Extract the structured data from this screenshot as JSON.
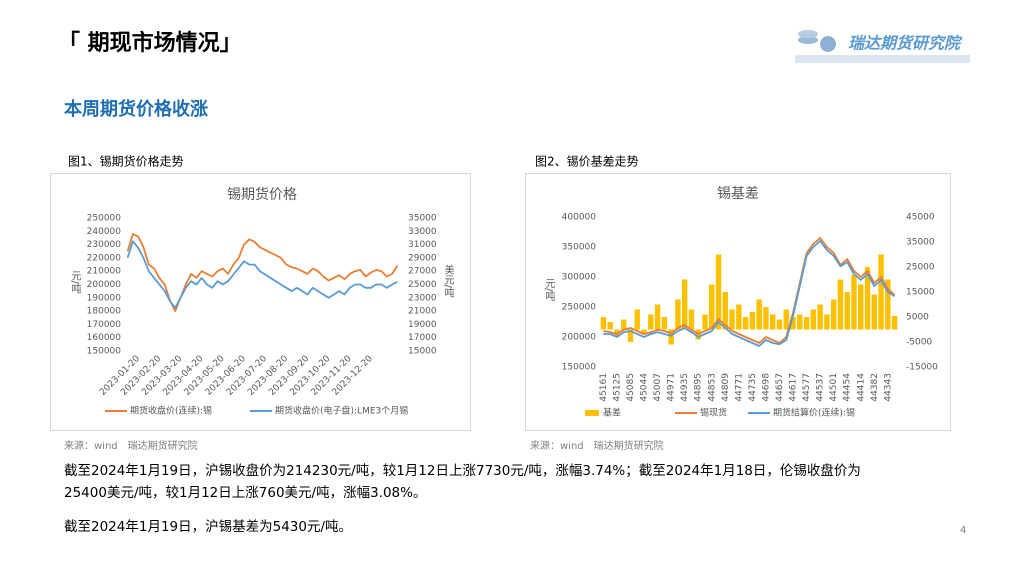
{
  "header": {
    "title": "「 期现市场情况」",
    "logo": "瑞达期货研究院"
  },
  "section_title": "本周期货价格收涨",
  "figures": [
    {
      "caption": "图1、锡期货价格走势",
      "source": "来源：wind　瑞达期货研究院"
    },
    {
      "caption": "图2、锡价基差走势",
      "source": "来源：wind　瑞达期货研究院"
    }
  ],
  "chart_data": [
    {
      "type": "line",
      "title": "锡期货价格",
      "ylabel": "元/吨",
      "y2label": "美元/吨",
      "categories": [
        null,
        null,
        "2023-01-20",
        null,
        null,
        null,
        "2023-02-20",
        null,
        null,
        null,
        "2023-03-20",
        null,
        null,
        null,
        "2023-04-20",
        null,
        null,
        null,
        "2023-05-20",
        null,
        null,
        null,
        "2023-06-20",
        null,
        null,
        null,
        "2023-07-20",
        null,
        null,
        null,
        "2023-08-20",
        null,
        null,
        null,
        "2023-09-20",
        null,
        null,
        null,
        "2023-10-20",
        null,
        null,
        null,
        "2023-11-20",
        null,
        null,
        null,
        "2023-12-20",
        null,
        null,
        null,
        null,
        null
      ],
      "ylim": [
        150000,
        250000
      ],
      "yticks": [
        150000,
        160000,
        170000,
        180000,
        190000,
        200000,
        210000,
        220000,
        230000,
        240000,
        250000
      ],
      "y2lim": [
        15000,
        35000
      ],
      "y2ticks": [
        15000,
        17000,
        19000,
        21000,
        23000,
        25000,
        27000,
        29000,
        31000,
        33000,
        35000
      ],
      "grid": false,
      "series": [
        {
          "name": "期货收盘价(连续):锡",
          "color": "#ED7D31",
          "type": "line",
          "values": [
            225000,
            238000,
            236000,
            228000,
            215000,
            212000,
            205000,
            200000,
            188000,
            180000,
            190000,
            200000,
            208000,
            205000,
            210000,
            208000,
            206000,
            210000,
            212000,
            208000,
            215000,
            220000,
            230000,
            234000,
            232000,
            228000,
            226000,
            224000,
            222000,
            220000,
            215000,
            213000,
            212000,
            210000,
            208000,
            212000,
            210000,
            206000,
            203000,
            205000,
            207000,
            204000,
            208000,
            210000,
            211000,
            206000,
            209000,
            211000,
            210000,
            206000,
            208000,
            214230
          ]
        },
        {
          "name": "期货收盘价(电子盘):LME3个月锡",
          "color": "#5B9BD5",
          "type": "line",
          "axis": "y2",
          "values": [
            29000,
            31500,
            30500,
            29000,
            27000,
            26000,
            25000,
            24000,
            22500,
            21500,
            23000,
            24500,
            25500,
            25000,
            26000,
            25000,
            24500,
            25500,
            25000,
            25500,
            26500,
            27500,
            28500,
            28000,
            28000,
            27000,
            26500,
            26000,
            25500,
            25000,
            24500,
            24000,
            24500,
            24000,
            23500,
            24500,
            24000,
            23500,
            23000,
            23500,
            24000,
            23500,
            24500,
            25000,
            25000,
            24500,
            24500,
            25000,
            25000,
            24500,
            25000,
            25400
          ]
        }
      ]
    },
    {
      "type": "combo",
      "title": "锡基差",
      "ylabel": "元/吨",
      "categories": [
        "45161",
        null,
        "45125",
        null,
        "45085",
        null,
        "45044",
        null,
        "45007",
        null,
        "44971",
        null,
        "44935",
        null,
        "44895",
        null,
        "44853",
        null,
        "44809",
        null,
        "44771",
        null,
        "44735",
        null,
        "44698",
        null,
        "44657",
        null,
        "44617",
        null,
        "44577",
        null,
        "44537",
        null,
        "44501",
        null,
        "44454",
        null,
        "44414",
        null,
        "44382",
        null,
        "44343",
        null
      ],
      "ylim": [
        150000,
        400000
      ],
      "yticks": [
        150000,
        200000,
        250000,
        300000,
        350000,
        400000
      ],
      "y2lim": [
        -15000,
        45000
      ],
      "y2ticks": [
        -15000,
        -5000,
        5000,
        15000,
        25000,
        35000,
        45000
      ],
      "grid": false,
      "series": [
        {
          "name": "基差",
          "color": "#FFC000",
          "type": "bar",
          "axis": "y2",
          "values": [
            5000,
            3000,
            -3000,
            4000,
            -5000,
            8000,
            -2000,
            6000,
            10000,
            5000,
            -6000,
            12000,
            20000,
            8000,
            -4000,
            6000,
            18000,
            30000,
            15000,
            8000,
            10000,
            5000,
            7000,
            12000,
            9000,
            6000,
            4000,
            8000,
            5000,
            6000,
            5000,
            8000,
            10000,
            6000,
            12000,
            20000,
            15000,
            22000,
            18000,
            25000,
            14000,
            30000,
            20000,
            5430
          ]
        },
        {
          "name": "锡现货",
          "color": "#ED7D31",
          "type": "line",
          "values": [
            210000,
            208000,
            205000,
            212000,
            215000,
            210000,
            205000,
            208000,
            212000,
            210000,
            206000,
            215000,
            220000,
            212000,
            205000,
            210000,
            215000,
            230000,
            220000,
            210000,
            205000,
            200000,
            195000,
            190000,
            200000,
            195000,
            190000,
            200000,
            240000,
            290000,
            340000,
            355000,
            365000,
            350000,
            340000,
            320000,
            330000,
            310000,
            300000,
            310000,
            290000,
            300000,
            280000,
            270000
          ]
        },
        {
          "name": "期货结算价(连续):锡",
          "color": "#5B9BD5",
          "type": "line",
          "values": [
            205000,
            205000,
            200000,
            208000,
            210000,
            205000,
            200000,
            205000,
            208000,
            205000,
            202000,
            210000,
            215000,
            208000,
            200000,
            205000,
            210000,
            225000,
            215000,
            205000,
            200000,
            195000,
            190000,
            185000,
            195000,
            190000,
            188000,
            195000,
            235000,
            285000,
            335000,
            350000,
            360000,
            345000,
            335000,
            318000,
            325000,
            305000,
            295000,
            305000,
            285000,
            295000,
            275000,
            268000
          ]
        }
      ]
    }
  ],
  "paragraphs": [
    [
      "截至2024年1月19日，沪锡收盘价为214230元/吨，较1月12日上涨7730元/吨，涨幅3.74%；截至2024年1月18日，伦锡收盘价为",
      "25400美元/吨，较1月12日上涨760美元/吨，涨幅3.08%。"
    ],
    [
      "截至2024年1月19日，沪锡基差为5430元/吨。"
    ]
  ],
  "page_number": 4
}
